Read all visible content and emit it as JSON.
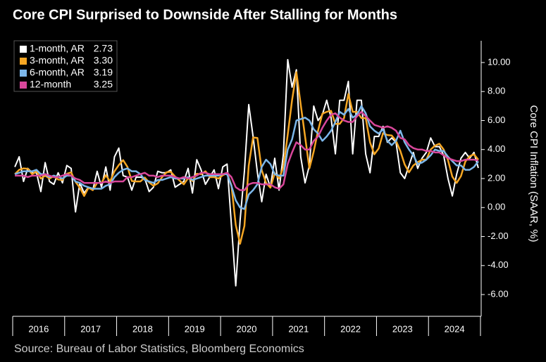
{
  "chart_data": {
    "type": "line",
    "title": "Core CPI Surprised to Downside After Stalling for Months",
    "source": "Source: Bureau of Labor Statistics, Bloomberg Economics",
    "y_label": "Core CPI Inflation (SAAR, %)",
    "grid": false,
    "legend_position": "top-left",
    "categories": [
      null,
      null,
      null,
      null,
      null,
      null,
      "2016",
      null,
      null,
      null,
      null,
      null,
      null,
      null,
      null,
      null,
      null,
      null,
      "2017",
      null,
      null,
      null,
      null,
      null,
      null,
      null,
      null,
      null,
      null,
      null,
      "2018",
      null,
      null,
      null,
      null,
      null,
      null,
      null,
      null,
      null,
      null,
      null,
      "2019",
      null,
      null,
      null,
      null,
      null,
      null,
      null,
      null,
      null,
      null,
      null,
      "2020",
      null,
      null,
      null,
      null,
      null,
      null,
      null,
      null,
      null,
      null,
      null,
      "2021",
      null,
      null,
      null,
      null,
      null,
      null,
      null,
      null,
      null,
      null,
      null,
      "2022",
      null,
      null,
      null,
      null,
      null,
      null,
      null,
      null,
      null,
      null,
      null,
      "2023",
      null,
      null,
      null,
      null,
      null,
      null,
      null,
      null,
      null,
      null,
      null,
      "2024",
      null,
      null,
      null,
      null,
      null
    ],
    "ylim": [
      -7.5,
      11.5
    ],
    "yticks": [
      {
        "value": -6,
        "label": "-6.00"
      },
      {
        "value": -4,
        "label": "-4.00"
      },
      {
        "value": -2,
        "label": "-2.00"
      },
      {
        "value": 0,
        "label": "0.00"
      },
      {
        "value": 2,
        "label": "2.00"
      },
      {
        "value": 4,
        "label": "4.00"
      },
      {
        "value": 6,
        "label": "6.00"
      },
      {
        "value": 8,
        "label": "8.00"
      },
      {
        "value": 10,
        "label": "10.00"
      }
    ],
    "series": [
      {
        "name": "1-month, AR",
        "legend_label": "2.73",
        "color": "#ffffff",
        "values": [
          2.8,
          3.5,
          1.8,
          2.7,
          2.4,
          2.4,
          1.1,
          3.1,
          1.8,
          1.6,
          2.4,
          1.7,
          2.9,
          2.7,
          -0.3,
          1.7,
          1.0,
          1.4,
          1.2,
          2.5,
          1.4,
          2.8,
          1.2,
          3.5,
          4.1,
          2.2,
          2.1,
          1.2,
          2.1,
          2.1,
          2.0,
          1.1,
          1.4,
          2.5,
          2.4,
          2.4,
          2.6,
          1.4,
          1.6,
          1.8,
          2.7,
          1.0,
          3.3,
          2.6,
          1.6,
          2.1,
          2.6,
          1.3,
          2.8,
          3.0,
          -1.2,
          -5.4,
          -0.9,
          2.5,
          7.1,
          4.9,
          2.4,
          0.4,
          2.3,
          1.4,
          3.4,
          1.2,
          3.7,
          10.2,
          8.3,
          9.5,
          3.5,
          1.7,
          2.9,
          7.0,
          6.0,
          6.4,
          7.4,
          6.2,
          3.7,
          7.4,
          7.4,
          8.7,
          3.7,
          7.4,
          7.4,
          3.7,
          2.4,
          4.9,
          4.9,
          5.6,
          4.5,
          4.8,
          4.5,
          2.4,
          2.0,
          2.9,
          3.8,
          2.7,
          3.4,
          3.8,
          4.8,
          4.2,
          4.2,
          3.6,
          2.0,
          0.8,
          2.3,
          3.4,
          3.8,
          3.4,
          3.8,
          2.73
        ]
      },
      {
        "name": "3-month, AR",
        "legend_label": "3.30",
        "color": "#f5a623",
        "values": [
          2.3,
          2.6,
          2.7,
          2.67,
          2.3,
          2.5,
          2.0,
          2.2,
          2.0,
          2.17,
          1.93,
          1.9,
          2.33,
          2.43,
          1.77,
          1.37,
          0.8,
          1.37,
          1.2,
          1.7,
          1.7,
          2.23,
          1.8,
          2.5,
          2.93,
          3.27,
          2.8,
          1.83,
          1.8,
          1.8,
          2.07,
          1.73,
          1.5,
          1.67,
          2.1,
          2.43,
          2.47,
          2.13,
          1.87,
          1.6,
          2.03,
          1.83,
          2.33,
          2.3,
          2.5,
          2.1,
          2.1,
          2.0,
          2.23,
          2.37,
          1.53,
          -1.2,
          -2.5,
          -1.27,
          2.9,
          4.83,
          4.8,
          2.57,
          1.7,
          1.37,
          2.37,
          2.0,
          2.77,
          5.03,
          7.4,
          9.33,
          7.1,
          4.9,
          2.7,
          3.87,
          5.3,
          6.47,
          6.6,
          6.67,
          5.77,
          5.77,
          6.17,
          7.83,
          6.6,
          6.6,
          6.17,
          6.17,
          4.5,
          3.67,
          4.07,
          5.13,
          5.0,
          4.97,
          4.6,
          3.9,
          2.97,
          2.43,
          2.9,
          3.13,
          3.3,
          3.3,
          4.0,
          4.27,
          4.4,
          4.0,
          3.27,
          2.13,
          1.7,
          2.17,
          3.17,
          3.53,
          3.67,
          3.3
        ]
      },
      {
        "name": "6-month, AR",
        "legend_label": "3.19",
        "color": "#7cb7ea",
        "values": [
          2.3,
          2.4,
          2.5,
          2.5,
          2.5,
          2.6,
          2.3,
          2.3,
          2.1,
          2.2,
          2.1,
          2.0,
          2.2,
          2.2,
          1.8,
          1.7,
          1.5,
          1.4,
          1.3,
          1.3,
          1.3,
          1.5,
          1.6,
          2.1,
          2.4,
          2.6,
          2.7,
          2.5,
          2.5,
          2.3,
          1.9,
          1.8,
          1.7,
          1.9,
          1.9,
          2.0,
          2.1,
          2.0,
          2.0,
          2.0,
          2.1,
          1.9,
          2.0,
          2.1,
          2.2,
          2.2,
          2.2,
          2.2,
          2.3,
          2.3,
          1.5,
          0.5,
          0.0,
          -0.1,
          0.9,
          1.2,
          1.6,
          2.8,
          3.3,
          3.0,
          2.3,
          2.2,
          2.2,
          4.0,
          4.7,
          6.0,
          6.1,
          6.2,
          6.0,
          5.4,
          5.1,
          4.6,
          4.9,
          5.3,
          5.9,
          6.6,
          6.4,
          6.8,
          6.2,
          6.4,
          7.0,
          6.5,
          5.6,
          5.3,
          5.1,
          5.4,
          4.6,
          4.3,
          4.6,
          5.3,
          4.5,
          4.0,
          3.6,
          3.0,
          3.1,
          3.3,
          3.6,
          4.0,
          3.9,
          3.9,
          3.5,
          3.2,
          2.9,
          2.9,
          2.6,
          2.6,
          2.8,
          3.19
        ]
      },
      {
        "name": "12-month",
        "legend_label": "3.25",
        "color": "#d9479b",
        "values": [
          2.2,
          2.2,
          2.2,
          2.1,
          2.2,
          2.2,
          2.2,
          2.3,
          2.2,
          2.1,
          2.1,
          2.2,
          2.3,
          2.2,
          2.0,
          1.9,
          1.7,
          1.7,
          1.7,
          1.7,
          1.7,
          1.8,
          1.7,
          1.8,
          1.8,
          1.8,
          2.1,
          2.1,
          2.2,
          2.3,
          2.4,
          2.2,
          2.2,
          2.1,
          2.2,
          2.2,
          2.2,
          2.1,
          2.0,
          2.1,
          2.0,
          2.1,
          2.2,
          2.4,
          2.4,
          2.3,
          2.3,
          2.3,
          2.3,
          2.4,
          2.1,
          1.4,
          1.2,
          1.2,
          1.6,
          1.7,
          1.7,
          1.6,
          1.6,
          1.6,
          1.4,
          1.3,
          1.6,
          3.0,
          3.8,
          4.5,
          4.3,
          4.0,
          4.0,
          4.6,
          4.9,
          5.5,
          6.0,
          6.4,
          6.5,
          6.2,
          6.0,
          5.9,
          5.9,
          6.3,
          6.6,
          6.3,
          6.0,
          5.7,
          5.6,
          5.5,
          5.6,
          5.5,
          5.3,
          4.8,
          4.7,
          4.3,
          4.1,
          4.0,
          4.0,
          3.9,
          3.9,
          3.8,
          3.8,
          3.6,
          3.4,
          3.3,
          3.2,
          3.2,
          3.3,
          3.3,
          3.3,
          3.25
        ]
      }
    ]
  }
}
